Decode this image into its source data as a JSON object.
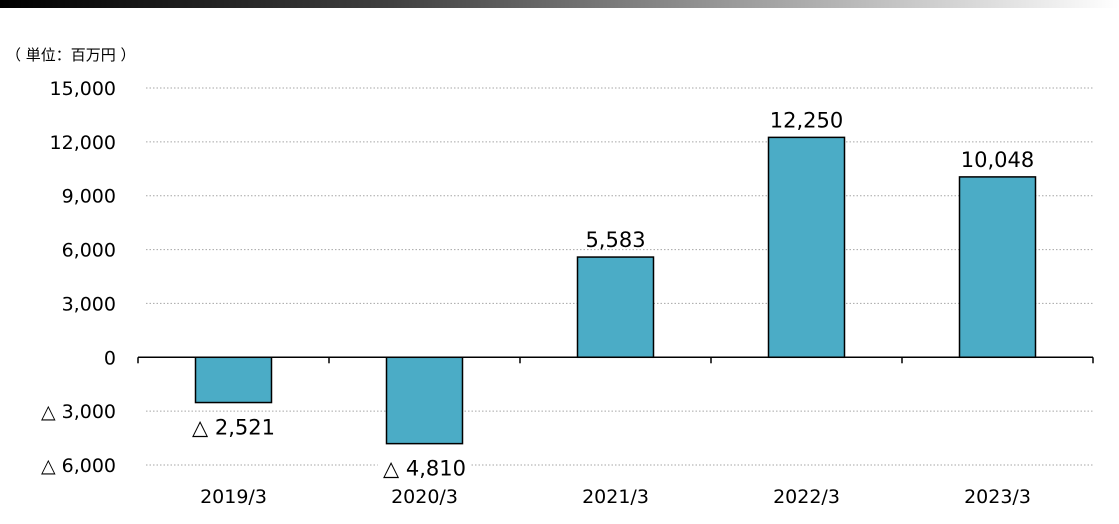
{
  "unit_label": "（ 単位：百万円 ）",
  "colors": {
    "bar_fill": "#4BACC6",
    "bar_stroke": "#000000",
    "grid": "#A6A6A6",
    "banner_dark": "#000000",
    "banner_light": "#FFFFFF"
  },
  "chart_data": {
    "type": "bar",
    "categories": [
      "2019/3",
      "2020/3",
      "2021/3",
      "2022/3",
      "2023/3"
    ],
    "values": [
      -2521,
      -4810,
      5583,
      12250,
      10048
    ],
    "data_labels": [
      "△ 2,521",
      "△ 4,810",
      "5,583",
      "12,250",
      "10,048"
    ],
    "yticks": [
      15000,
      12000,
      9000,
      6000,
      3000,
      0,
      -3000,
      -6000
    ],
    "ytick_labels": [
      "15,000",
      "12,000",
      "9,000",
      "6,000",
      "3,000",
      "0",
      "△ 3,000",
      "△ 6,000"
    ],
    "ylim": [
      -6000,
      15000
    ],
    "grid": true,
    "grid_style": "dotted",
    "legend": false
  }
}
